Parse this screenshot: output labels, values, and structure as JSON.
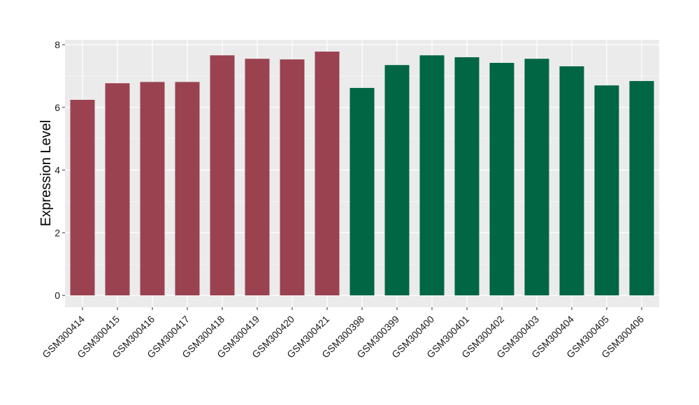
{
  "chart_data": {
    "type": "bar",
    "ylabel": "Expression Level",
    "xlabel": "",
    "ylim": [
      0,
      8.4
    ],
    "yticks": [
      0,
      2,
      4,
      6,
      8
    ],
    "grid": true,
    "categories": [
      "GSM300414",
      "GSM300415",
      "GSM300416",
      "GSM300417",
      "GSM300418",
      "GSM300419",
      "GSM300420",
      "GSM300421",
      "GSM300398",
      "GSM300399",
      "GSM300400",
      "GSM300401",
      "GSM300402",
      "GSM300403",
      "GSM300404",
      "GSM300405",
      "GSM300406"
    ],
    "values": [
      6.24,
      6.77,
      6.81,
      6.81,
      7.66,
      7.55,
      7.53,
      7.78,
      6.62,
      7.35,
      7.66,
      7.6,
      7.42,
      7.55,
      7.31,
      6.7,
      6.84
    ],
    "bar_colors": [
      "#9a4250",
      "#9a4250",
      "#9a4250",
      "#9a4250",
      "#9a4250",
      "#9a4250",
      "#9a4250",
      "#9a4250",
      "#006644",
      "#006644",
      "#006644",
      "#006644",
      "#006644",
      "#006644",
      "#006644",
      "#006644",
      "#006644"
    ],
    "panel_background": "#ebebeb",
    "grid_color": "#ffffff"
  }
}
